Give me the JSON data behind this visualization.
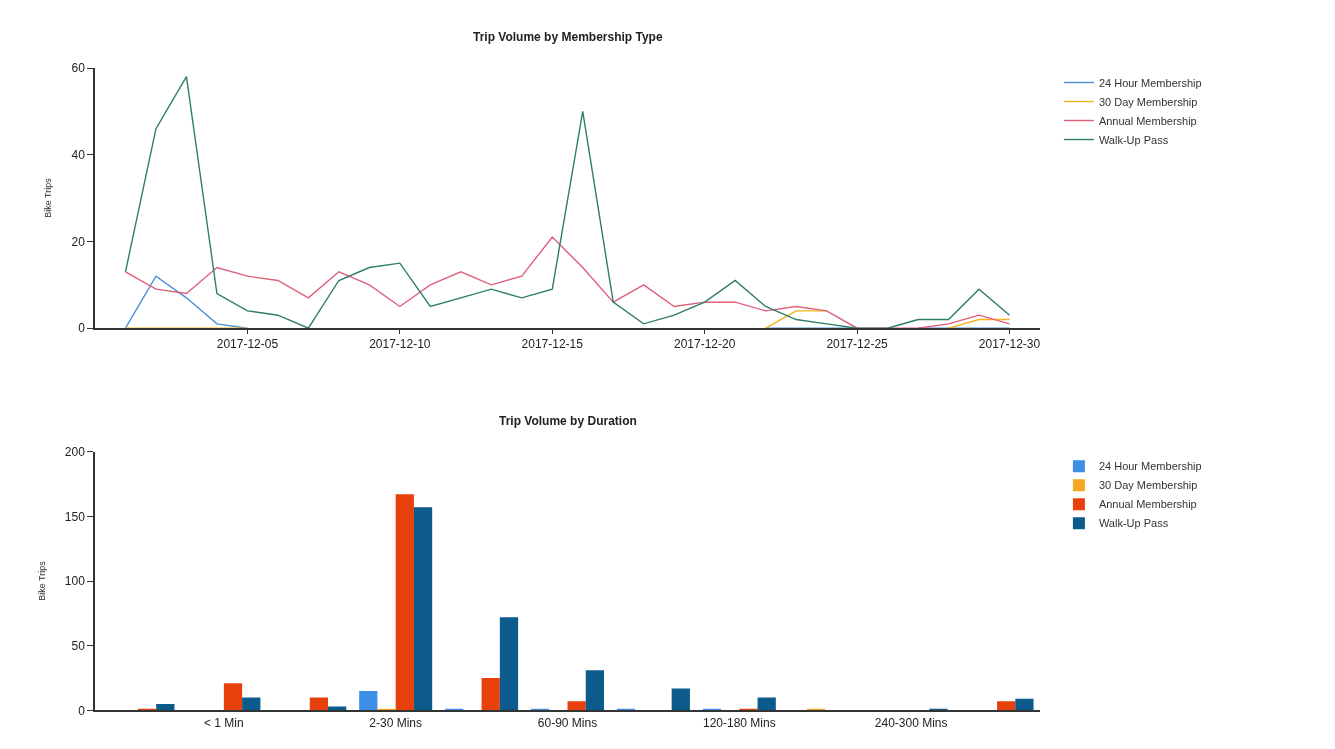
{
  "chart_data": [
    {
      "type": "line",
      "title": "Trip Volume by Membership Type",
      "ylabel": "Bike Trips",
      "x": [
        "2017-12-01",
        "2017-12-02",
        "2017-12-03",
        "2017-12-04",
        "2017-12-05",
        "2017-12-06",
        "2017-12-07",
        "2017-12-08",
        "2017-12-09",
        "2017-12-10",
        "2017-12-11",
        "2017-12-12",
        "2017-12-13",
        "2017-12-14",
        "2017-12-15",
        "2017-12-16",
        "2017-12-17",
        "2017-12-18",
        "2017-12-19",
        "2017-12-20",
        "2017-12-21",
        "2017-12-22",
        "2017-12-23",
        "2017-12-24",
        "2017-12-25",
        "2017-12-26",
        "2017-12-27",
        "2017-12-28",
        "2017-12-29",
        "2017-12-30"
      ],
      "series": [
        {
          "name": "24 Hour Membership",
          "color": "#4a90d9",
          "values": [
            0,
            12,
            7,
            1,
            0,
            null,
            null,
            null,
            null,
            null,
            null,
            null,
            null,
            null,
            null,
            null,
            null,
            null,
            null,
            null,
            null,
            0,
            0,
            0,
            0,
            null,
            0,
            0,
            0,
            0
          ]
        },
        {
          "name": "30 Day Membership",
          "color": "#f5b21a",
          "values": [
            0,
            0,
            0,
            0,
            0,
            null,
            null,
            null,
            null,
            null,
            null,
            null,
            null,
            null,
            null,
            null,
            null,
            null,
            null,
            null,
            null,
            0,
            4,
            4,
            null,
            null,
            null,
            0,
            2,
            2
          ]
        },
        {
          "name": "Annual Membership",
          "color": "#e0607a",
          "values": [
            13,
            9,
            8,
            14,
            12,
            11,
            7,
            13,
            10,
            5,
            10,
            13,
            10,
            12,
            21,
            14,
            6,
            10,
            5,
            6,
            6,
            4,
            5,
            4,
            0,
            0,
            0,
            1,
            3,
            1
          ]
        },
        {
          "name": "Walk-Up Pass",
          "color": "#2e7d6b",
          "values": [
            13,
            46,
            58,
            8,
            4,
            3,
            0,
            11,
            14,
            15,
            5,
            7,
            9,
            7,
            9,
            50,
            6,
            1,
            3,
            6,
            11,
            5,
            2,
            1,
            0,
            0,
            2,
            2,
            9,
            3
          ]
        }
      ],
      "xlim": [
        "2017-11-30",
        "2017-12-31"
      ],
      "xticks": [
        "2017-12-05",
        "2017-12-10",
        "2017-12-15",
        "2017-12-20",
        "2017-12-25",
        "2017-12-30"
      ],
      "ylim": [
        0,
        60
      ],
      "yticks": [
        0,
        20,
        40,
        60
      ],
      "legend": "top right",
      "marker": "none",
      "line_style": "solid"
    },
    {
      "type": "bar",
      "title": "Trip Volume by Duration",
      "ylabel": "Bike Trips",
      "categories": [
        null,
        "< 1 Min",
        null,
        "2-30 Mins",
        null,
        "60-90 Mins",
        null,
        "120-180 Mins",
        null,
        "240-300 Mins",
        null
      ],
      "series": [
        {
          "name": "24 Hour Membership",
          "color": "#3d8fe8",
          "values": [
            0,
            0,
            0,
            15,
            1,
            1,
            1,
            1,
            0,
            0,
            0
          ]
        },
        {
          "name": "30 Day Membership",
          "color": "#f5a623",
          "values": [
            0,
            0,
            0,
            1,
            0,
            0,
            0,
            0,
            1,
            0,
            0
          ]
        },
        {
          "name": "Annual Membership",
          "color": "#e8400c",
          "values": [
            1,
            21,
            10,
            167,
            25,
            7,
            0,
            1,
            0,
            0,
            7
          ]
        },
        {
          "name": "Walk-Up Pass",
          "color": "#0d5a8c",
          "values": [
            5,
            10,
            3,
            157,
            72,
            31,
            17,
            10,
            0,
            1,
            9
          ]
        }
      ],
      "ylim": [
        0,
        200
      ],
      "yticks": [
        0,
        50,
        100,
        150,
        200
      ],
      "legend": "top right"
    }
  ]
}
